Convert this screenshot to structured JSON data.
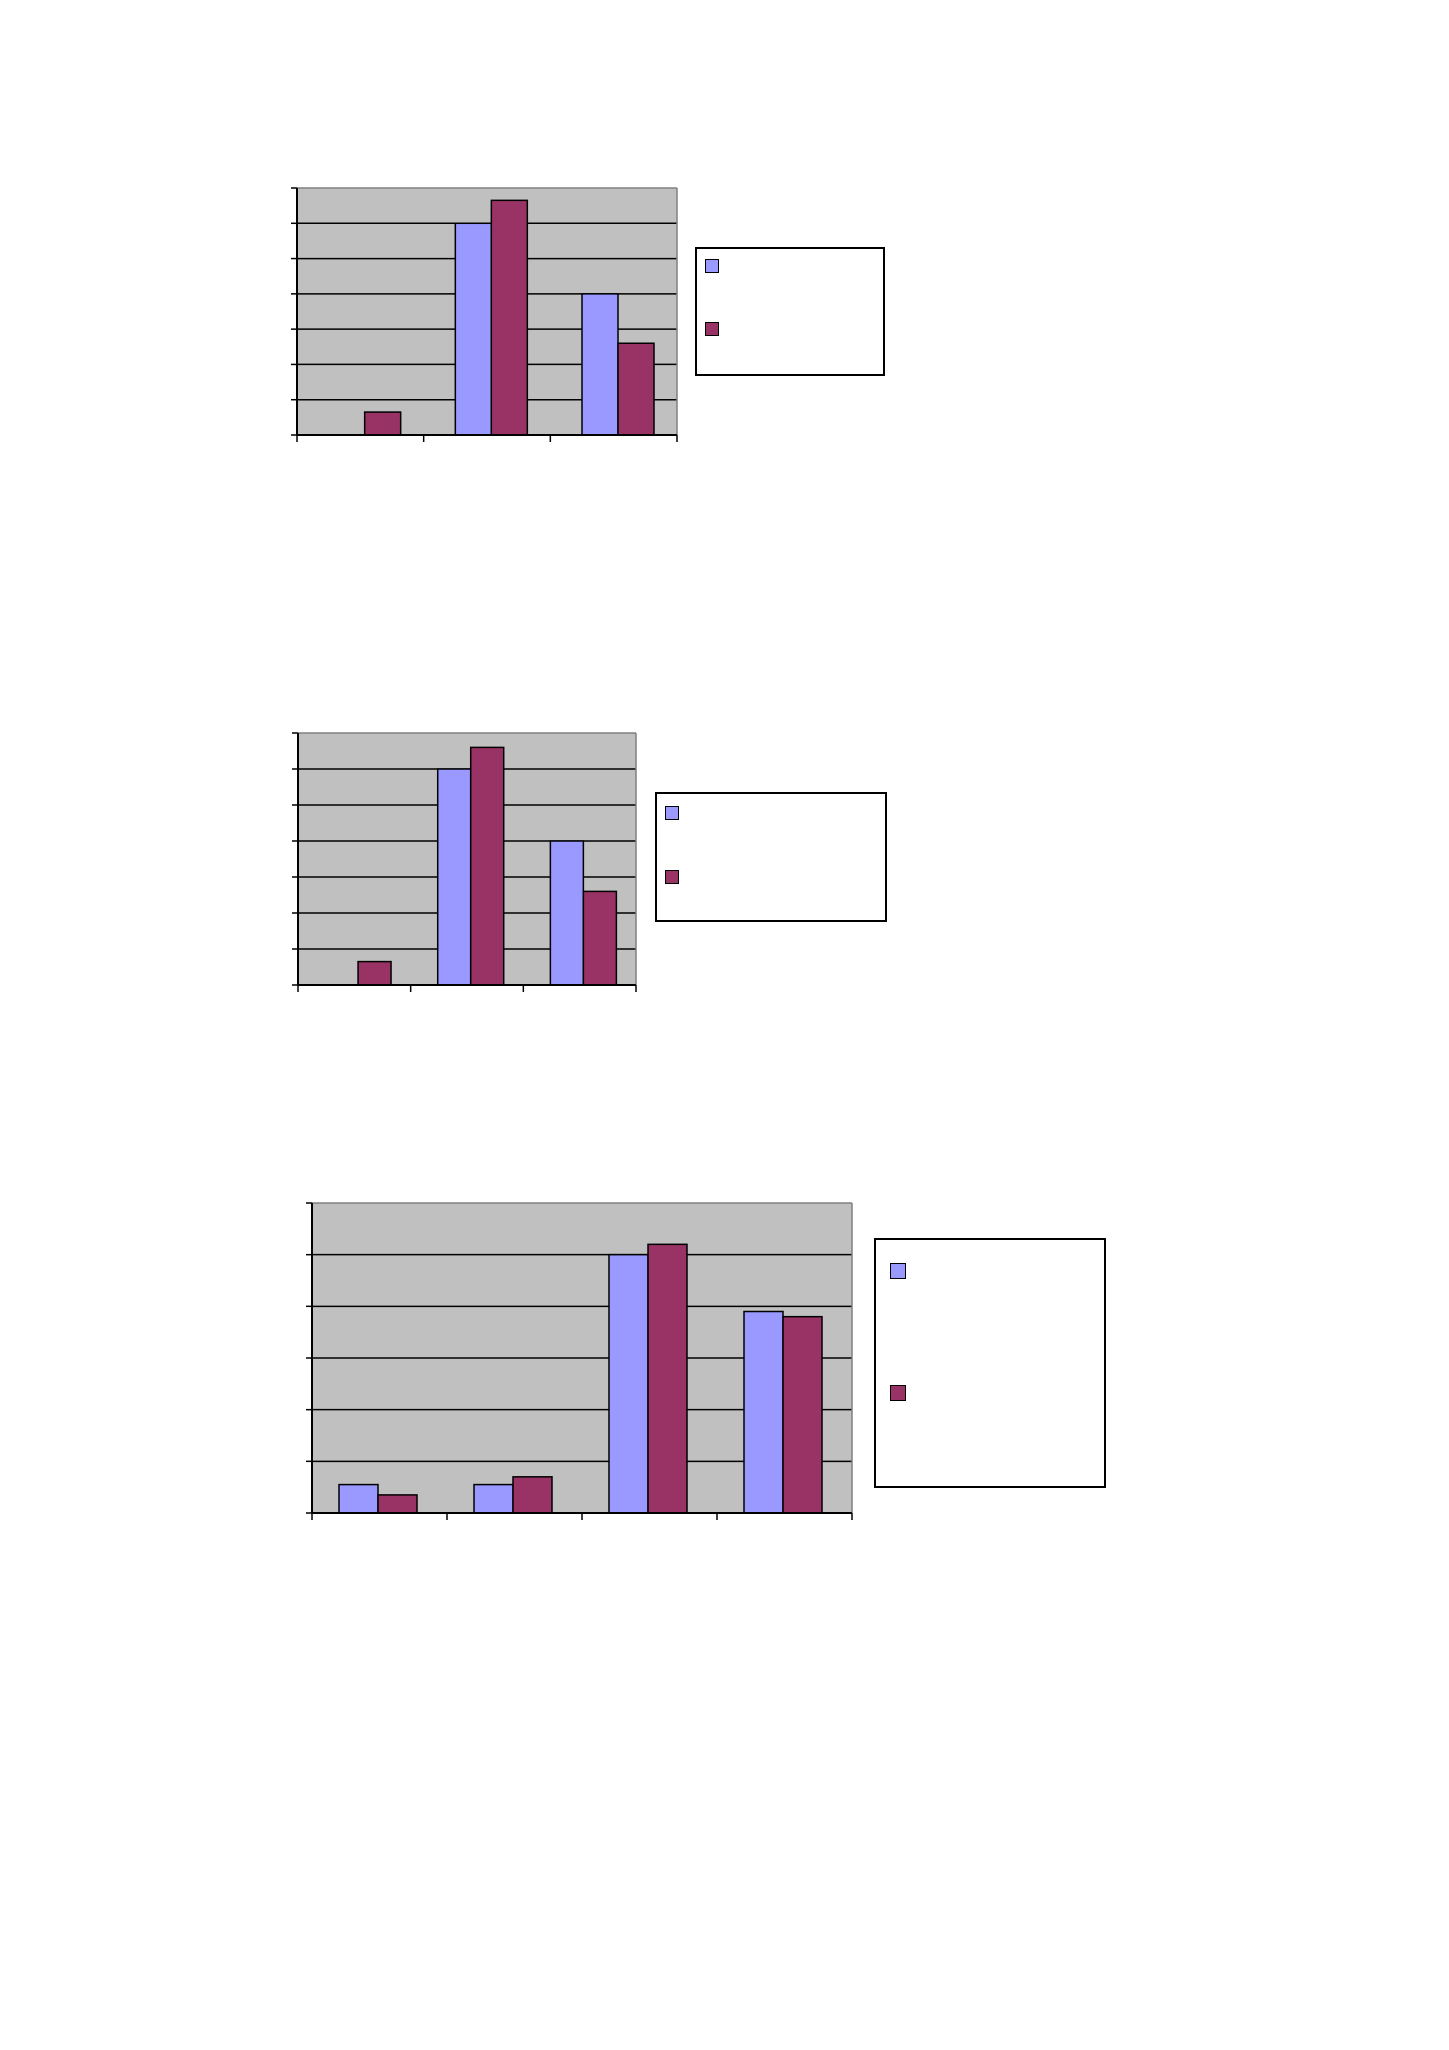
{
  "colors": {
    "series_a": "#9999ff",
    "series_b": "#993366",
    "plot_background": "#c0c0c0",
    "gridline": "#000000",
    "page_background": "#ffffff"
  },
  "chart_data": [
    {
      "type": "bar",
      "categories": [
        "",
        "",
        ""
      ],
      "series": [
        {
          "values": [
            0,
            6,
            4
          ]
        },
        {
          "values": [
            0.65,
            6.65,
            2.6
          ]
        }
      ],
      "ylim": [
        0,
        7
      ],
      "y_ticks": 8,
      "grid": true,
      "legend_position": "right",
      "legend_entries": [
        "",
        ""
      ]
    },
    {
      "type": "bar",
      "categories": [
        "",
        "",
        ""
      ],
      "series": [
        {
          "values": [
            0,
            6,
            4
          ]
        },
        {
          "values": [
            0.65,
            6.6,
            2.6
          ]
        }
      ],
      "ylim": [
        0,
        7
      ],
      "y_ticks": 8,
      "grid": true,
      "legend_position": "right",
      "legend_entries": [
        "",
        ""
      ]
    },
    {
      "type": "bar",
      "categories": [
        "",
        "",
        "",
        ""
      ],
      "series": [
        {
          "values": [
            0.55,
            0.55,
            5.0,
            3.9
          ]
        },
        {
          "values": [
            0.35,
            0.7,
            5.2,
            3.8
          ]
        }
      ],
      "ylim": [
        0,
        6
      ],
      "y_ticks": 7,
      "grid": true,
      "legend_position": "right",
      "legend_entries": [
        "",
        ""
      ]
    }
  ]
}
